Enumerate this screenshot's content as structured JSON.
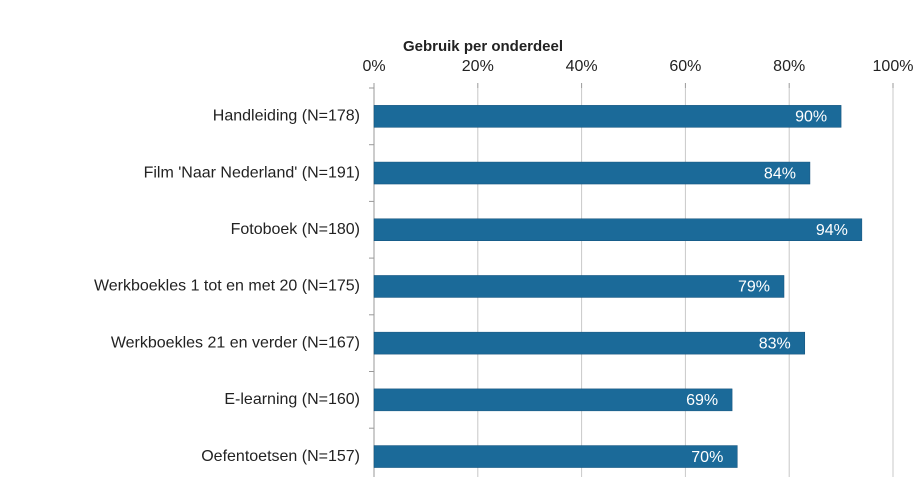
{
  "chart_data": {
    "type": "bar",
    "orientation": "horizontal",
    "title": "Gebruik per onderdeel",
    "categories": [
      "Handleiding (N=178)",
      "Film 'Naar Nederland' (N=191)",
      "Fotoboek (N=180)",
      "Werkboekles 1 tot en met 20 (N=175)",
      "Werkboekles 21 en verder (N=167)",
      "E-learning (N=160)",
      "Oefentoetsen (N=157)"
    ],
    "values": [
      90,
      84,
      94,
      79,
      83,
      69,
      70
    ],
    "value_labels": [
      "90%",
      "84%",
      "94%",
      "79%",
      "83%",
      "69%",
      "70%"
    ],
    "color": "#1b6a99",
    "xlim": [
      0,
      100
    ],
    "xticks": [
      {
        "value": 0,
        "label": "0%"
      },
      {
        "value": 20,
        "label": "20%"
      },
      {
        "value": 40,
        "label": "40%"
      },
      {
        "value": 60,
        "label": "60%"
      },
      {
        "value": 80,
        "label": "80%"
      },
      {
        "value": 100,
        "label": "100%"
      }
    ],
    "grid": true
  }
}
